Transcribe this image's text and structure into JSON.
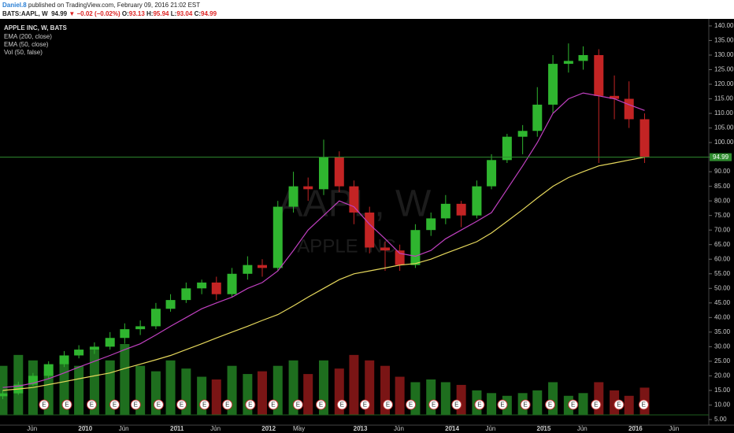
{
  "header": {
    "author": "Daniel.8",
    "published": "published on TradingView.com, February 09, 2016 21:02 EST",
    "symbol": "BATS:AAPL, W",
    "price": "94.99",
    "change": "▼ −0.02 (−0.02%)",
    "ohlc": [
      {
        "label": "O:",
        "value": "93.13"
      },
      {
        "label": "H:",
        "value": "95.94"
      },
      {
        "label": "L:",
        "value": "93.04"
      },
      {
        "label": "C:",
        "value": "94.99"
      }
    ]
  },
  "chart_data": {
    "type": "candlestick",
    "title": "APPLE INC, W, BATS",
    "watermark": "AAPL, W",
    "watermark_sub": "APPLE INC",
    "up_color": "#2fb52f",
    "down_color": "#c32424",
    "x": [
      2009.1,
      2009.27,
      2009.43,
      2009.6,
      2009.77,
      2009.93,
      2010.1,
      2010.27,
      2010.43,
      2010.6,
      2010.77,
      2010.93,
      2011.1,
      2011.27,
      2011.43,
      2011.6,
      2011.77,
      2011.93,
      2012.1,
      2012.27,
      2012.43,
      2012.6,
      2012.77,
      2012.93,
      2013.1,
      2013.27,
      2013.43,
      2013.6,
      2013.77,
      2013.93,
      2014.1,
      2014.27,
      2014.43,
      2014.6,
      2014.77,
      2014.93,
      2015.1,
      2015.27,
      2015.43,
      2015.6,
      2015.77,
      2015.93,
      2016.1
    ],
    "open": [
      13,
      14,
      17,
      20,
      24,
      27,
      29,
      30,
      33,
      36,
      37,
      43,
      46,
      50,
      52,
      48,
      55,
      58,
      57,
      78,
      85,
      84,
      95,
      85,
      76,
      64,
      63,
      58,
      70,
      74,
      79,
      75,
      85,
      94,
      102,
      104,
      113,
      127,
      128,
      130,
      116,
      115,
      108
    ],
    "high": [
      15,
      18,
      21,
      25,
      28.5,
      30.5,
      31.5,
      35,
      38,
      39,
      45,
      48,
      52,
      53,
      54,
      57,
      61,
      60,
      80,
      90,
      88,
      101,
      97,
      87,
      78,
      66,
      65,
      72,
      76,
      82,
      80,
      87,
      96,
      103,
      106,
      119,
      130,
      134,
      133,
      132,
      123,
      121,
      110
    ],
    "low": [
      12,
      13.5,
      16.5,
      19,
      23,
      26,
      27.5,
      29,
      31,
      34,
      36,
      42,
      45,
      48,
      46,
      47,
      53,
      54,
      56,
      76,
      80,
      82,
      83,
      72,
      62,
      56,
      56,
      57,
      68,
      72,
      71,
      74,
      84,
      93,
      96,
      102,
      110,
      124,
      125,
      93,
      108,
      105,
      93
    ],
    "close": [
      14,
      17,
      20,
      24,
      27,
      29,
      30,
      33,
      36,
      37,
      43,
      46,
      50,
      52,
      48,
      55,
      58,
      57,
      78,
      85,
      84,
      95,
      85,
      76,
      64,
      63,
      58,
      70,
      74,
      79,
      75,
      85,
      94,
      102,
      104,
      113,
      127,
      128,
      130,
      116,
      115,
      108,
      95
    ],
    "series": [
      {
        "name": "EMA (200, close)",
        "color": "#e6d85c",
        "values": [
          15,
          15.5,
          16,
          17,
          18,
          19,
          20,
          21,
          22.5,
          24,
          25.5,
          27,
          29,
          31,
          33,
          35,
          37,
          39,
          41,
          44,
          47,
          50,
          53,
          55,
          56,
          57,
          58,
          58.5,
          60,
          62,
          64,
          66,
          69,
          73,
          77,
          81,
          85,
          88,
          90,
          92,
          93,
          94,
          95
        ]
      },
      {
        "name": "EMA (50, close)",
        "color": "#c040c0",
        "values": [
          16,
          16.5,
          17.5,
          19,
          21,
          23,
          25,
          27,
          29,
          31,
          34,
          37,
          40,
          43,
          45,
          47,
          50,
          52,
          56,
          63,
          70,
          75,
          80,
          78,
          72,
          67,
          62,
          61,
          63,
          67,
          70,
          73,
          76,
          84,
          92,
          100,
          110,
          115,
          117,
          116,
          115,
          113,
          111
        ]
      }
    ],
    "volume": {
      "name": "Vol (50, false)",
      "values": [
        900,
        1100,
        1000,
        800,
        950,
        900,
        1200,
        1000,
        1300,
        900,
        800,
        1000,
        850,
        700,
        650,
        900,
        750,
        800,
        900,
        1000,
        750,
        1000,
        850,
        1100,
        1000,
        900,
        700,
        600,
        650,
        600,
        550,
        450,
        400,
        350,
        400,
        450,
        600,
        350,
        400,
        600,
        450,
        350,
        500
      ]
    },
    "last_price": 94.99,
    "earnings_marker": "E",
    "earnings_x": [
      2009.55,
      2009.8,
      2010.07,
      2010.32,
      2010.55,
      2010.8,
      2011.05,
      2011.3,
      2011.55,
      2011.8,
      2012.05,
      2012.32,
      2012.57,
      2012.8,
      2013.05,
      2013.3,
      2013.55,
      2013.8,
      2014.05,
      2014.3,
      2014.55,
      2014.8,
      2015.07,
      2015.32,
      2015.57,
      2015.82,
      2016.09
    ],
    "xlim": [
      2009.07,
      2016.8
    ],
    "xticks": [
      {
        "value": 2009.42,
        "label": "Jun"
      },
      2010,
      {
        "value": 2010.42,
        "label": "Jun"
      },
      2011,
      {
        "value": 2011.42,
        "label": "Jun"
      },
      2012,
      {
        "value": 2012.33,
        "label": "May"
      },
      2013,
      {
        "value": 2013.42,
        "label": "Jun"
      },
      2014,
      {
        "value": 2014.42,
        "label": "Jun"
      },
      2015,
      {
        "value": 2015.42,
        "label": "Jun"
      },
      2016,
      {
        "value": 2016.42,
        "label": "Jun"
      }
    ],
    "ylim": [
      3.1,
      141.6
    ],
    "yticks": [
      {
        "value": 140,
        "label": "140.00"
      },
      {
        "value": 135,
        "label": "135.00"
      },
      {
        "value": 130,
        "label": "130.00"
      },
      {
        "value": 125,
        "label": "125.00"
      },
      {
        "value": 120,
        "label": "120.00"
      },
      {
        "value": 115,
        "label": "115.00"
      },
      {
        "value": 110,
        "label": "110.00"
      },
      {
        "value": 105,
        "label": "105.00"
      },
      {
        "value": 100,
        "label": "100.00"
      },
      {
        "value": 95,
        "label": "95.00"
      },
      {
        "value": 90,
        "label": "90.00"
      },
      {
        "value": 85,
        "label": "85.00"
      },
      {
        "value": 80,
        "label": "80.00"
      },
      {
        "value": 75,
        "label": "75.00"
      },
      {
        "value": 70,
        "label": "70.00"
      },
      {
        "value": 65,
        "label": "65.00"
      },
      {
        "value": 60,
        "label": "60.00"
      },
      {
        "value": 55,
        "label": "55.00"
      },
      {
        "value": 50,
        "label": "50.00"
      },
      {
        "value": 45,
        "label": "45.00"
      },
      {
        "value": 40,
        "label": "40.00"
      },
      {
        "value": 35,
        "label": "35.00"
      },
      {
        "value": 30,
        "label": "30.00"
      },
      {
        "value": 25,
        "label": "25.00"
      },
      {
        "value": 20,
        "label": "20.00"
      },
      {
        "value": 15,
        "label": "15.00"
      },
      {
        "value": 10,
        "label": "10.00"
      },
      {
        "value": 5,
        "label": "5.00"
      }
    ]
  }
}
